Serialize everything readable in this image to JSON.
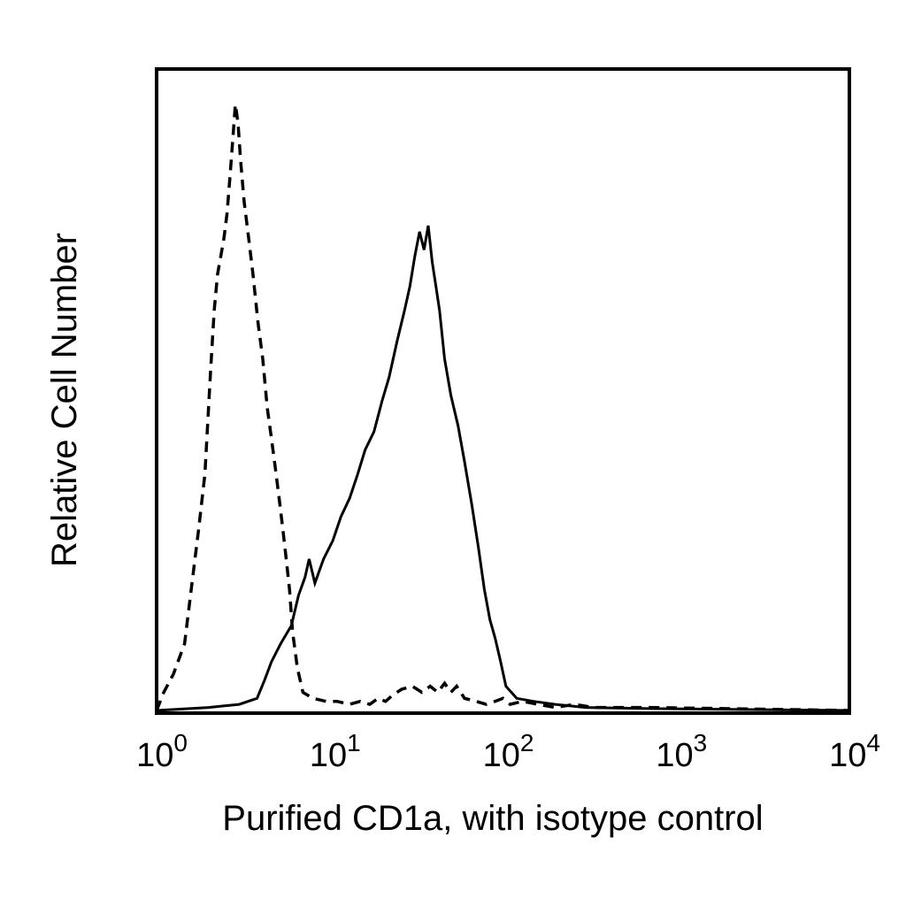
{
  "chart_data": {
    "type": "line",
    "title": "",
    "xlabel": "Purified CD1a, with isotype control",
    "ylabel": "Relative Cell Number",
    "x_scale": "log10",
    "xlim": [
      1,
      10000
    ],
    "ylim": [
      0,
      100
    ],
    "grid": false,
    "legend": "none",
    "x_ticks": [
      {
        "value": 1,
        "base": "10",
        "exp": "0"
      },
      {
        "value": 10,
        "base": "10",
        "exp": "1"
      },
      {
        "value": 100,
        "base": "10",
        "exp": "2"
      },
      {
        "value": 1000,
        "base": "10",
        "exp": "3"
      },
      {
        "value": 10000,
        "base": "10",
        "exp": "4"
      }
    ],
    "series": [
      {
        "style": "dashed",
        "color": "#000000",
        "x": [
          1.0,
          1.1,
          1.25,
          1.45,
          1.6,
          1.75,
          1.9,
          2.05,
          2.15,
          2.25,
          2.35,
          2.45,
          2.55,
          2.65,
          2.75,
          2.85,
          2.95,
          3.05,
          3.2,
          3.4,
          3.6,
          3.85,
          4.1,
          4.35,
          4.6,
          4.85,
          5.1,
          5.35,
          5.6,
          5.85,
          6.1,
          6.5,
          7.0,
          8.0,
          9.5,
          11.0,
          13.0,
          15.0,
          17.0,
          19.0,
          21.0,
          23.0,
          26.0,
          30.0,
          34.0,
          38.0,
          42.0,
          46.0,
          50.0,
          54.0,
          60.0,
          70.0,
          80.0,
          90.0,
          100.0,
          110.0,
          130.0,
          160.0,
          200.0,
          260.0,
          330.0,
          700.0,
          10000.0
        ],
        "y": [
          0,
          3,
          6,
          11,
          21,
          30,
          39,
          56,
          66,
          72,
          75,
          78,
          82,
          88,
          94,
          100,
          97,
          91,
          84,
          78,
          72,
          64,
          58,
          50,
          45,
          40,
          35,
          30,
          25,
          20,
          13,
          7,
          3,
          2,
          1.5,
          1.5,
          1,
          1.5,
          1,
          2,
          1.5,
          2.5,
          3.5,
          4,
          3,
          4,
          3,
          4.5,
          3,
          4,
          2,
          1.5,
          1,
          1.5,
          2,
          1,
          1.5,
          1,
          0.5,
          1,
          0.5,
          0.5,
          0
        ]
      },
      {
        "style": "solid",
        "color": "#000000",
        "x": [
          1.0,
          2.0,
          3.0,
          3.8,
          4.2,
          4.6,
          5.2,
          6.0,
          6.6,
          7.2,
          7.6,
          8.2,
          9.2,
          10.4,
          11.6,
          13.0,
          14.5,
          16.0,
          18.0,
          20.0,
          22.0,
          24.5,
          27.0,
          29.0,
          31.0,
          33.0,
          35.0,
          37.0,
          39.0,
          41.0,
          43.0,
          46.0,
          50.0,
          55.0,
          60.0,
          66.0,
          72.0,
          78.0,
          84.0,
          90.0,
          97.0,
          104.0,
          120.0,
          150.0,
          200.0,
          300.0,
          700.0,
          10000.0
        ],
        "y": [
          0,
          0.5,
          1,
          2,
          5,
          8,
          11,
          14,
          19,
          22,
          25,
          21,
          25,
          28,
          32,
          35,
          39,
          43,
          46,
          51,
          55,
          61,
          66,
          70,
          75,
          79,
          76,
          80,
          74,
          70,
          66,
          58,
          52,
          47,
          41,
          34,
          27,
          20,
          15,
          12,
          8,
          4,
          2,
          1.5,
          1,
          0.5,
          0.3,
          0
        ]
      }
    ]
  }
}
